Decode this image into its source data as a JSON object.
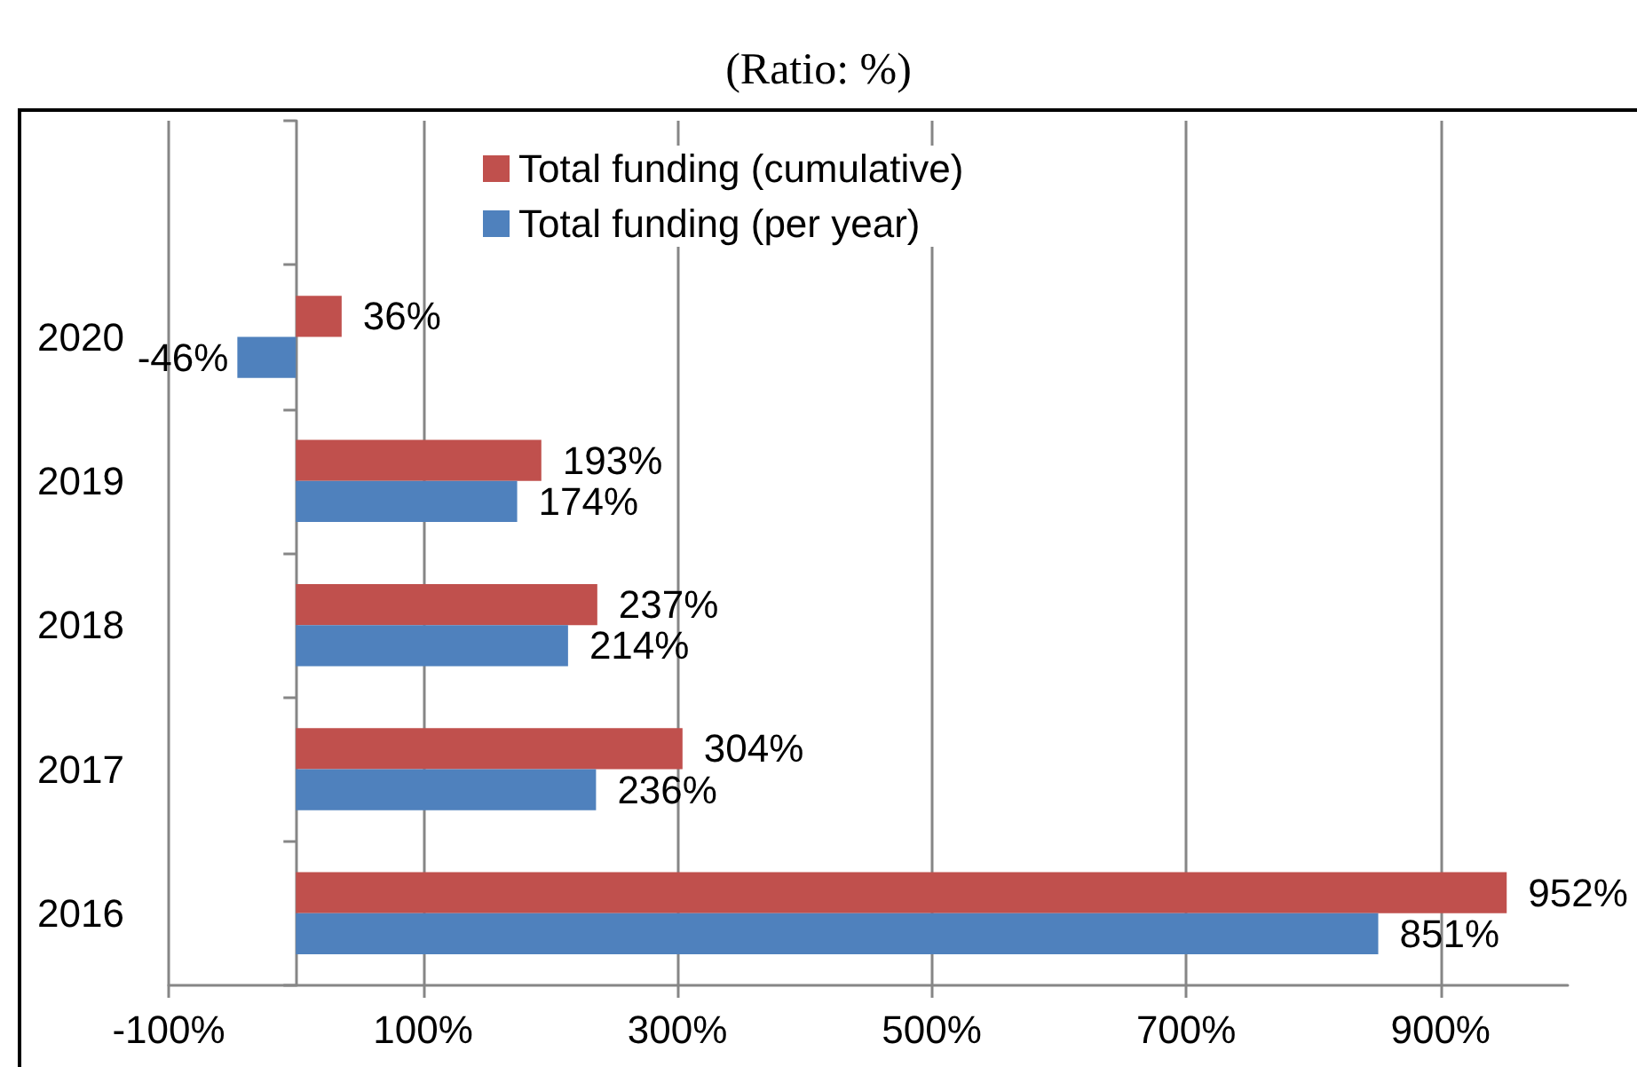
{
  "chart_data": {
    "type": "bar",
    "orientation": "horizontal",
    "title": "(Ratio: %)",
    "categories": [
      null,
      "2020",
      "2019",
      "2018",
      "2017",
      "2016"
    ],
    "series": [
      {
        "name": "Total funding (cumulative)",
        "color": "#c0504d",
        "values": [
          null,
          36,
          193,
          237,
          304,
          952
        ],
        "value_labels": [
          null,
          "36%",
          "193%",
          "237%",
          "304%",
          "952%"
        ]
      },
      {
        "name": "Total funding (per year)",
        "color": "#4f81bd",
        "values": [
          null,
          -46,
          174,
          214,
          236,
          851
        ],
        "value_labels": [
          null,
          "-46%",
          "174%",
          "214%",
          "236%",
          "851%"
        ]
      }
    ],
    "xlim": [
      -100,
      1000
    ],
    "xticks": [
      {
        "value": -100,
        "label": "-100%"
      },
      {
        "value": 100,
        "label": "100%"
      },
      {
        "value": 300,
        "label": "300%"
      },
      {
        "value": 500,
        "label": "500%"
      },
      {
        "value": 700,
        "label": "700%"
      },
      {
        "value": 900,
        "label": "900%"
      }
    ],
    "grid": "x",
    "legend": "top"
  }
}
